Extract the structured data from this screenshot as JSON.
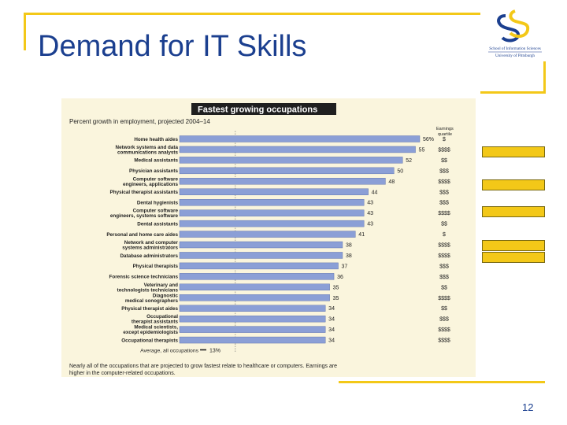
{
  "slide": {
    "title": "Demand for IT Skills",
    "page_number": "12",
    "logo_line1": "School of Information Sciences",
    "logo_line2": "University of Pittsburgh",
    "accent_color": "#f3c818",
    "title_color": "#1b3f8f"
  },
  "chart_data": {
    "type": "bar",
    "orientation": "horizontal",
    "title": "Fastest growing occupations",
    "subtitle": "Percent growth in employment, projected 2004–14",
    "earnings_header": "Earnings quartile",
    "categories": [
      "Home health aides",
      "Network systems and data communications analysts",
      "Medical assistants",
      "Physician assistants",
      "Computer software engineers, applications",
      "Physical therapist assistants",
      "Dental hygienists",
      "Computer software engineers, systems software",
      "Dental assistants",
      "Personal and home care aides",
      "Network and computer systems administrators",
      "Database administrators",
      "Physical therapists",
      "Forensic science technicians",
      "Veterinary technologists and technicians",
      "Diagnostic medical sonographers",
      "Physical therapist aides",
      "Occupational therapist assistants",
      "Medical scientists, except epidemiologists",
      "Occupational therapists"
    ],
    "values": [
      56,
      55,
      52,
      50,
      48,
      44,
      43,
      43,
      43,
      41,
      38,
      38,
      37,
      36,
      35,
      35,
      34,
      34,
      34,
      34
    ],
    "value_labels": [
      "56%",
      "55",
      "52",
      "50",
      "48",
      "44",
      "43",
      "43",
      "43",
      "41",
      "38",
      "38",
      "37",
      "36",
      "35",
      "35",
      "34",
      "34",
      "34",
      "34"
    ],
    "earnings": [
      "$",
      "$$$$",
      "$$",
      "$$$",
      "$$$$",
      "$$$",
      "$$$",
      "$$$$",
      "$$",
      "$",
      "$$$$",
      "$$$$",
      "$$$",
      "$$$",
      "$$",
      "$$$$",
      "$$",
      "$$$",
      "$$$$",
      "$$$$"
    ],
    "average": {
      "label": "Average, all occupations",
      "value": 13,
      "value_label": "13%"
    },
    "footnote": "Nearly all of the occupations that are projected to grow fastest relate to healthcare or computers. Earnings are higher in the computer-related occupations.",
    "xlim": [
      0,
      56
    ],
    "grid": false,
    "colors": {
      "bar": "#8b9fd6",
      "bar_edge": "#5468a8",
      "title_bg": "#1f1f1f",
      "title_text": "#ffffff",
      "panel_bg": "#faf5dd",
      "text": "#222222"
    }
  }
}
